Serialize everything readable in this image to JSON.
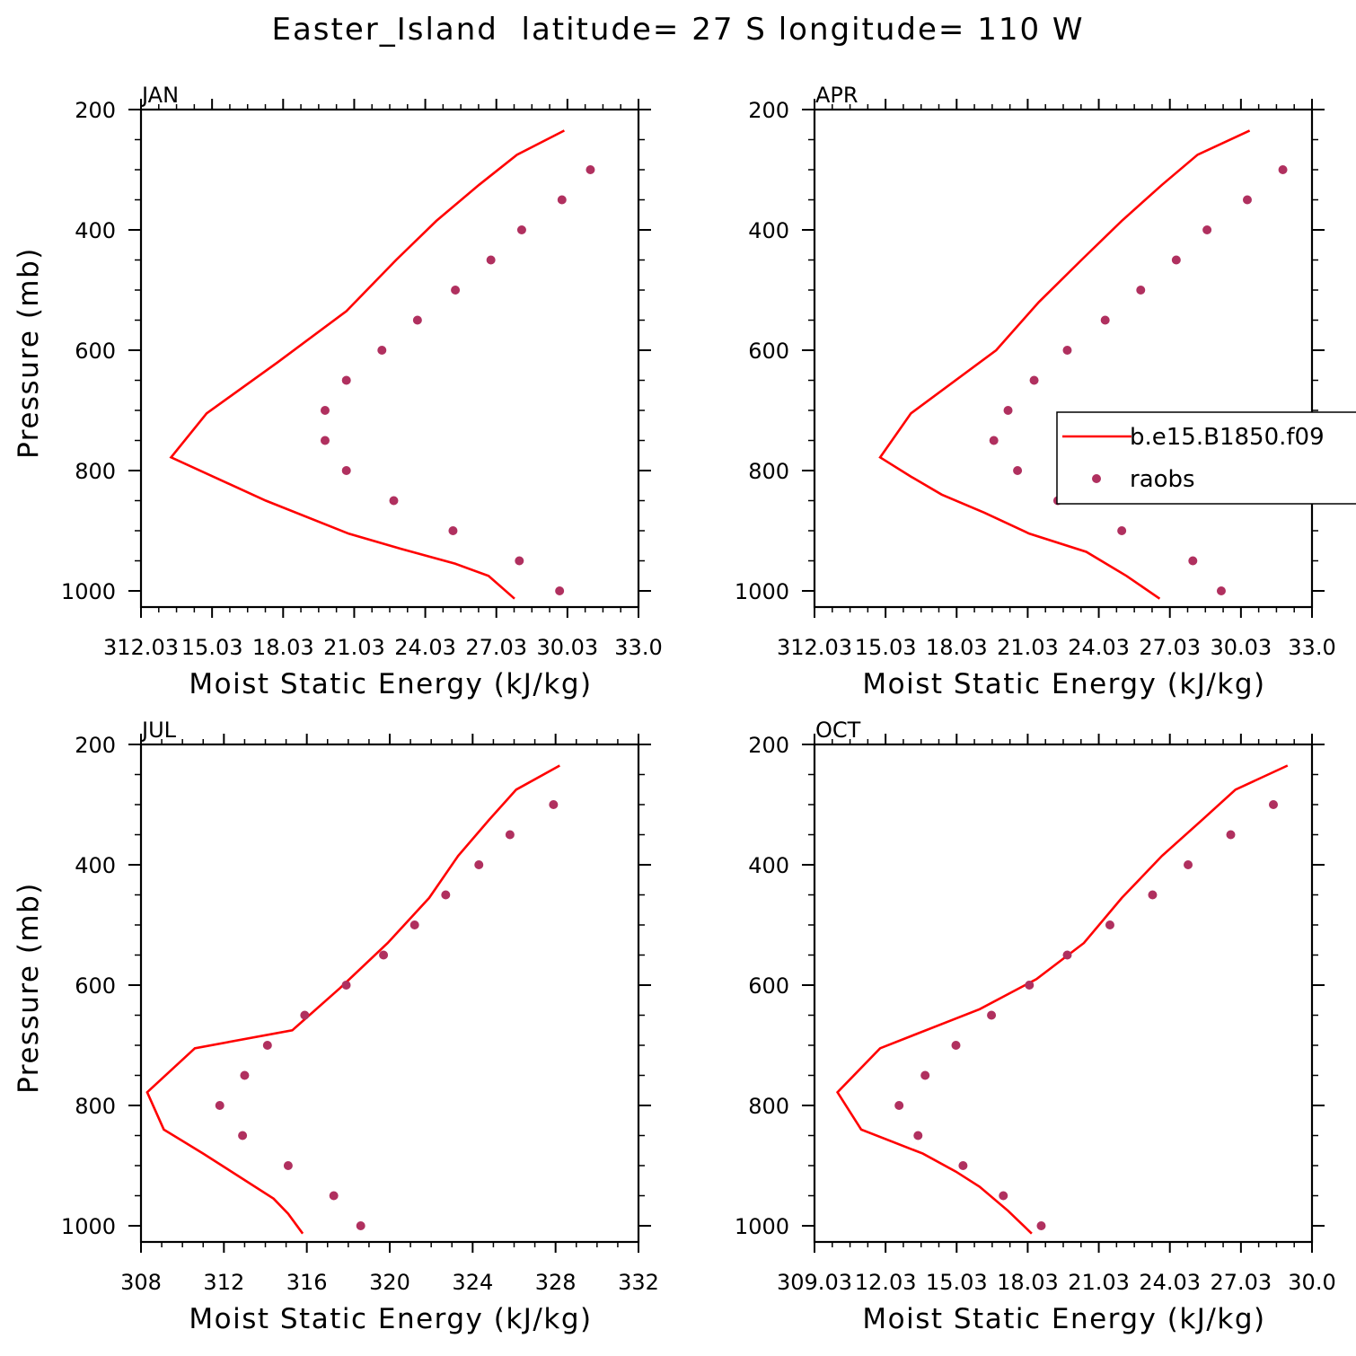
{
  "title": "Easter_Island  latitude= 27 S longitude= 110 W",
  "colors": {
    "model": "#ff0000",
    "obs": "#b0305f",
    "axis": "#000000"
  },
  "legend": {
    "model_label": "b.e15.B1850.f09",
    "obs_label": "raobs"
  },
  "chart_data": [
    {
      "type": "line",
      "panel": "JAN",
      "xlabel": "Moist Static Energy (kJ/kg)",
      "ylabel": "Pressure (mb)",
      "xlim": [
        312.03,
        333.03
      ],
      "ylim": [
        200,
        1000
      ],
      "y_reversed": true,
      "xticks": [
        312.03,
        315.03,
        318.03,
        321.03,
        324.03,
        327.03,
        330.03,
        333.03
      ],
      "xtick_labels": [
        "312.03",
        "15.03",
        "18.03",
        "21.03",
        "24.03",
        "27.03",
        "30.03",
        "33.0"
      ],
      "yticks": [
        200,
        400,
        600,
        800,
        1000
      ],
      "series": [
        {
          "name": "b.e15.B1850.f09",
          "style": "line",
          "x": [
            329.9,
            327.9,
            326.3,
            324.5,
            322.8,
            320.7,
            317.8,
            314.8,
            313.3,
            317.3,
            320.8,
            323.0,
            325.3,
            326.7,
            327.8
          ],
          "y": [
            235,
            275,
            325,
            385,
            450,
            535,
            620,
            705,
            778,
            850,
            905,
            930,
            955,
            975,
            1013
          ]
        },
        {
          "name": "raobs",
          "style": "points",
          "x": [
            331.0,
            329.8,
            328.1,
            326.8,
            325.3,
            323.7,
            322.2,
            320.7,
            319.8,
            319.8,
            320.7,
            322.7,
            325.2,
            328.0,
            329.7
          ],
          "y": [
            300,
            350,
            400,
            450,
            500,
            550,
            600,
            650,
            700,
            750,
            800,
            850,
            900,
            950,
            1000
          ]
        }
      ]
    },
    {
      "type": "line",
      "panel": "APR",
      "xlabel": "Moist Static Energy (kJ/kg)",
      "ylabel": "Pressure (mb)",
      "xlim": [
        312.03,
        333.03
      ],
      "ylim": [
        200,
        1000
      ],
      "y_reversed": true,
      "xticks": [
        312.03,
        315.03,
        318.03,
        321.03,
        324.03,
        327.03,
        330.03,
        333.03
      ],
      "xtick_labels": [
        "312.03",
        "15.03",
        "18.03",
        "21.03",
        "24.03",
        "27.03",
        "30.03",
        "33.0"
      ],
      "yticks": [
        200,
        400,
        600,
        800,
        1000
      ],
      "series": [
        {
          "name": "b.e15.B1850.f09",
          "style": "line",
          "x": [
            330.4,
            328.2,
            326.7,
            325.0,
            323.3,
            321.5,
            319.7,
            316.1,
            314.8,
            316.1,
            317.4,
            319.2,
            321.1,
            323.5,
            325.2,
            326.6
          ],
          "y": [
            235,
            275,
            325,
            385,
            450,
            520,
            600,
            705,
            778,
            810,
            840,
            870,
            905,
            935,
            975,
            1013
          ]
        },
        {
          "name": "raobs",
          "style": "points",
          "x": [
            331.8,
            330.3,
            328.6,
            327.3,
            325.8,
            324.3,
            322.7,
            321.3,
            320.2,
            319.6,
            320.6,
            322.3,
            325.0,
            328.0,
            329.2
          ],
          "y": [
            300,
            350,
            400,
            450,
            500,
            550,
            600,
            650,
            700,
            750,
            800,
            850,
            900,
            950,
            1000
          ]
        }
      ]
    },
    {
      "type": "line",
      "panel": "JUL",
      "xlabel": "Moist Static Energy (kJ/kg)",
      "ylabel": "Pressure (mb)",
      "xlim": [
        308,
        332
      ],
      "ylim": [
        200,
        1000
      ],
      "y_reversed": true,
      "xticks": [
        308,
        312,
        316,
        320,
        324,
        328,
        332
      ],
      "xtick_labels": [
        "308",
        "312",
        "316",
        "320",
        "324",
        "328",
        "332"
      ],
      "yticks": [
        200,
        400,
        600,
        800,
        1000
      ],
      "series": [
        {
          "name": "b.e15.B1850.f09",
          "style": "line",
          "x": [
            328.2,
            326.1,
            324.8,
            323.3,
            321.9,
            319.9,
            317.6,
            315.3,
            310.6,
            308.3,
            309.1,
            311.0,
            314.4,
            315.1,
            315.8
          ],
          "y": [
            235,
            275,
            325,
            385,
            455,
            530,
            605,
            675,
            705,
            778,
            840,
            880,
            955,
            980,
            1013
          ]
        },
        {
          "name": "raobs",
          "style": "points",
          "x": [
            327.9,
            325.8,
            324.3,
            322.7,
            321.2,
            319.7,
            317.9,
            315.9,
            314.1,
            313.0,
            311.8,
            312.9,
            315.1,
            317.3,
            318.6
          ],
          "y": [
            300,
            350,
            400,
            450,
            500,
            550,
            600,
            650,
            700,
            750,
            800,
            850,
            900,
            950,
            1000
          ]
        }
      ]
    },
    {
      "type": "line",
      "panel": "OCT",
      "xlabel": "Moist Static Energy (kJ/kg)",
      "ylabel": "Pressure (mb)",
      "xlim": [
        309.03,
        330.03
      ],
      "ylim": [
        200,
        1000
      ],
      "y_reversed": true,
      "xticks": [
        309.03,
        312.03,
        315.03,
        318.03,
        321.03,
        324.03,
        327.03,
        330.03
      ],
      "xtick_labels": [
        "309.03",
        "12.03",
        "15.03",
        "18.03",
        "21.03",
        "24.03",
        "27.03",
        "30.0"
      ],
      "yticks": [
        200,
        400,
        600,
        800,
        1000
      ],
      "series": [
        {
          "name": "b.e15.B1850.f09",
          "style": "line",
          "x": [
            329.0,
            326.8,
            325.4,
            323.7,
            322.0,
            320.4,
            318.4,
            316.0,
            311.8,
            310.0,
            311.0,
            313.6,
            315.0,
            316.0,
            317.2,
            318.2
          ],
          "y": [
            235,
            275,
            325,
            385,
            455,
            530,
            590,
            640,
            705,
            778,
            840,
            880,
            910,
            935,
            975,
            1013
          ]
        },
        {
          "name": "raobs",
          "style": "points",
          "x": [
            328.4,
            326.6,
            324.8,
            323.3,
            321.5,
            319.7,
            318.1,
            316.5,
            315.0,
            313.7,
            312.6,
            313.4,
            315.3,
            317.0,
            318.6
          ],
          "y": [
            300,
            350,
            400,
            450,
            500,
            550,
            600,
            650,
            700,
            750,
            800,
            850,
            900,
            950,
            1000
          ]
        }
      ]
    }
  ]
}
